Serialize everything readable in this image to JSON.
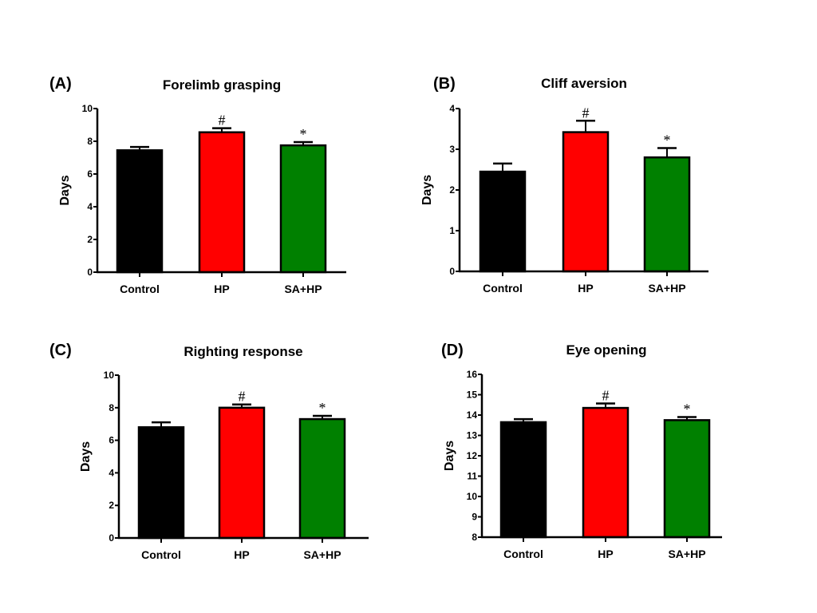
{
  "colors": {
    "Control": "#000000",
    "HP": "#ff0000",
    "SA+HP": "#008000"
  },
  "chart_data": [
    {
      "type": "bar",
      "panel_label": "(A)",
      "title": "Forelimb grasping",
      "ylabel": "Days",
      "xlabel": "",
      "categories": [
        "Control",
        "HP",
        "SA+HP"
      ],
      "values": [
        7.45,
        8.55,
        7.75
      ],
      "errors": [
        0.2,
        0.25,
        0.2
      ],
      "annotations": [
        "",
        "#",
        "*"
      ],
      "ylim": [
        0,
        10
      ],
      "yticks": [
        "0",
        "2",
        "4",
        "6",
        "8",
        "10"
      ],
      "ytick_values": [
        0,
        2,
        4,
        6,
        8,
        10
      ],
      "grid": false
    },
    {
      "type": "bar",
      "panel_label": "(B)",
      "title": "Cliff aversion",
      "ylabel": "Days",
      "xlabel": "",
      "categories": [
        "Control",
        "HP",
        "SA+HP"
      ],
      "values": [
        2.45,
        3.42,
        2.8
      ],
      "errors": [
        0.2,
        0.28,
        0.23
      ],
      "annotations": [
        "",
        "#",
        "*"
      ],
      "ylim": [
        0,
        4
      ],
      "yticks": [
        "0",
        "1",
        "2",
        "3",
        "4"
      ],
      "ytick_values": [
        0,
        1,
        2,
        3,
        4
      ],
      "grid": false
    },
    {
      "type": "bar",
      "panel_label": "(C)",
      "title": "Righting response",
      "ylabel": "Days",
      "xlabel": "",
      "categories": [
        "Control",
        "HP",
        "SA+HP"
      ],
      "values": [
        6.8,
        8.0,
        7.3
      ],
      "errors": [
        0.3,
        0.2,
        0.2
      ],
      "annotations": [
        "",
        "#",
        "*"
      ],
      "ylim": [
        0,
        10
      ],
      "yticks": [
        "0",
        "2",
        "4",
        "6",
        "8",
        "10"
      ],
      "ytick_values": [
        0,
        2,
        4,
        6,
        8,
        10
      ],
      "grid": false
    },
    {
      "type": "bar",
      "panel_label": "(D)",
      "title": "Eye opening",
      "ylabel": "Days",
      "xlabel": "",
      "categories": [
        "Control",
        "HP",
        "SA+HP"
      ],
      "values": [
        13.65,
        14.35,
        13.75
      ],
      "errors": [
        0.15,
        0.22,
        0.15
      ],
      "annotations": [
        "",
        "#",
        "*"
      ],
      "ylim": [
        8,
        16
      ],
      "yticks": [
        "8",
        "9",
        "10",
        "11",
        "12",
        "13",
        "14",
        "15",
        "16"
      ],
      "ytick_values": [
        8,
        9,
        10,
        11,
        12,
        13,
        14,
        15,
        16
      ],
      "grid": false
    }
  ]
}
